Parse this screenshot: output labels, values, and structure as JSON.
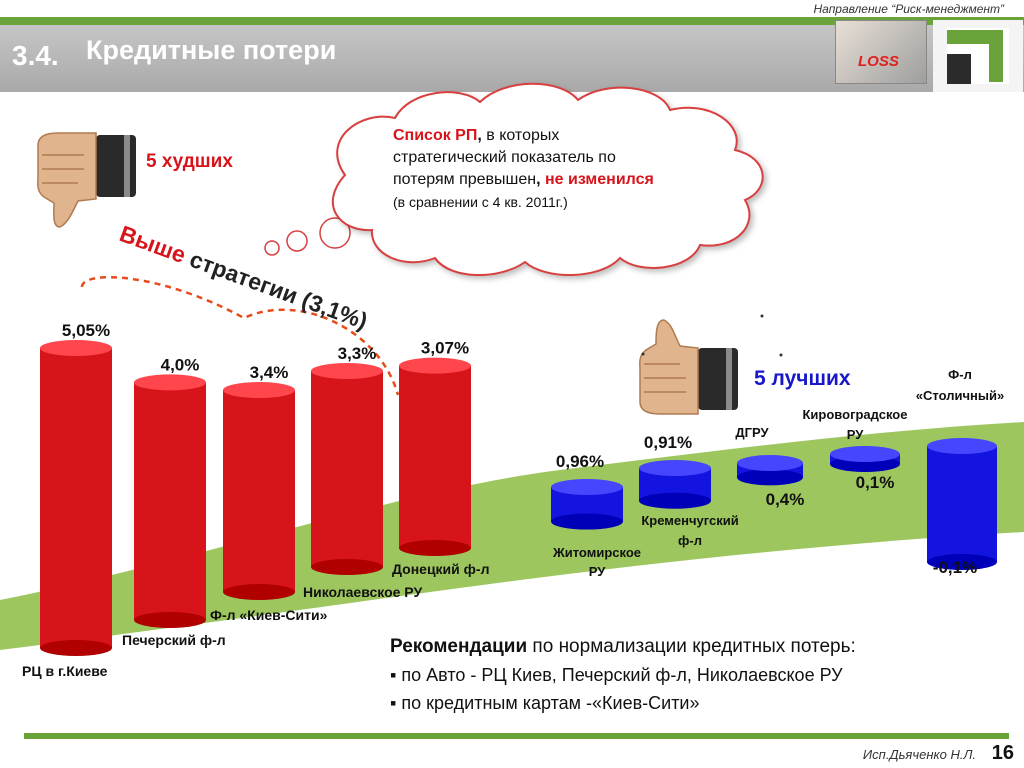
{
  "header": {
    "direction": "Направление “Риск-менеджмент”",
    "number": "3.4.",
    "title": "Кредитные потери",
    "loss_label": "LOSS"
  },
  "worst": {
    "label": "5 худших",
    "strategy_label": "Выше стратегии (3,1%)"
  },
  "best": {
    "label": "5 лучших"
  },
  "thought": {
    "line1_highlight": "Список  РП",
    "line1_comma": ",",
    "line1_rest": " в которых",
    "line2": "стратегический показатель по",
    "line3_start": "потерям превышен",
    "line3_comma": ", ",
    "line3_highlight": "не изменился",
    "line4": "(в сравнении с 4 кв. 2011г.)"
  },
  "chart_data": {
    "type": "bar",
    "unit": "%",
    "worst_series": {
      "categories": [
        "РЦ в  г.Киеве",
        "Печерский ф-л",
        "Ф-л  «Киев-Сити»",
        "Николаевское РУ",
        "Донецкий ф-л"
      ],
      "values": [
        5.05,
        4.0,
        3.4,
        3.3,
        3.07
      ],
      "labels": [
        "5,05%",
        "4,0%",
        "3,4%",
        "3,3%",
        "3,07%"
      ],
      "color": "#d8141b"
    },
    "best_series": {
      "categories": [
        "Житомирское РУ",
        "Кременчугский ф-л",
        "ДГРУ",
        "Кировоградское РУ",
        "Ф-л «Столичный»"
      ],
      "values": [
        0.96,
        0.91,
        0.4,
        0.1,
        -0.1
      ],
      "labels": [
        "0,96%",
        "0,91%",
        "0,4%",
        "0,1%",
        "-0,1%"
      ],
      "color": "#1414e0"
    },
    "strategy_value": 3.1,
    "band_color": "#9dc75e"
  },
  "recommendations": {
    "title_bold": "Рекомендации",
    "title_rest": " по нормализации кредитных потерь:",
    "items": [
      "▪ по Авто - РЦ Киев, Печерский ф-л, Николаевское РУ",
      "▪ по кредитным картам -«Киев-Сити»"
    ]
  },
  "footer": {
    "author": "Исп.Дьяченко Н.Л.",
    "page": "16"
  }
}
